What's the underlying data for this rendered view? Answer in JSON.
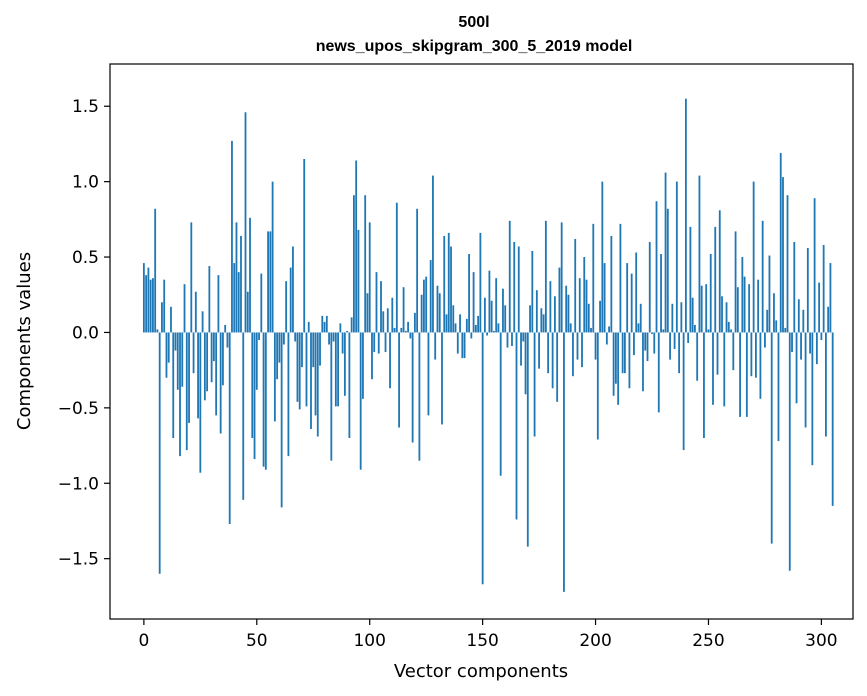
{
  "chart_data": {
    "type": "bar",
    "title_line1": "500l",
    "title_line2": "news_upos_skipgram_300_5_2019 model",
    "xlabel": "Vector components",
    "ylabel": "Components values",
    "xlim": [
      -15,
      314
    ],
    "ylim": [
      -1.9,
      1.78
    ],
    "xticks": [
      0,
      50,
      100,
      150,
      200,
      250,
      300
    ],
    "yticks": [
      -1.5,
      -1.0,
      -0.5,
      0.0,
      0.5,
      1.0,
      1.5
    ],
    "ytick_labels": [
      "−1.5",
      "−1.0",
      "−0.5",
      "0.0",
      "0.5",
      "1.0",
      "1.5"
    ],
    "bar_color": "#1f77b4",
    "values": [
      0.46,
      0.38,
      0.43,
      0.35,
      0.36,
      0.82,
      0.02,
      -1.6,
      0.2,
      0.35,
      -0.3,
      -0.2,
      0.17,
      -0.7,
      -0.12,
      -0.38,
      -0.82,
      -0.36,
      0.32,
      -0.78,
      -0.6,
      0.73,
      -0.27,
      0.27,
      -0.57,
      -0.93,
      0.14,
      -0.45,
      -0.39,
      0.44,
      -0.33,
      -0.19,
      -0.55,
      0.38,
      -0.67,
      -0.35,
      0.05,
      -0.1,
      -1.27,
      1.27,
      0.46,
      0.73,
      0.4,
      0.64,
      -1.11,
      1.46,
      0.27,
      0.76,
      -0.7,
      -0.84,
      -0.38,
      -0.05,
      0.39,
      -0.89,
      -0.91,
      0.67,
      0.67,
      1.0,
      -0.59,
      -0.31,
      -0.2,
      -1.16,
      -0.08,
      0.34,
      -0.82,
      0.43,
      0.57,
      -0.06,
      -0.46,
      -0.51,
      -0.23,
      1.15,
      -0.49,
      0.07,
      -0.64,
      -0.23,
      -0.55,
      -0.69,
      -0.22,
      0.11,
      0.07,
      0.11,
      -0.08,
      -0.85,
      -0.06,
      -0.49,
      -0.49,
      0.06,
      -0.14,
      -0.42,
      0.01,
      -0.7,
      0.1,
      0.91,
      1.14,
      0.68,
      -0.91,
      -0.44,
      0.91,
      0.26,
      0.73,
      -0.31,
      -0.13,
      0.4,
      -0.14,
      0.34,
      0.14,
      -0.13,
      0.16,
      -0.37,
      0.23,
      0.03,
      0.86,
      -0.63,
      0.03,
      0.3,
      0.01,
      0.07,
      -0.04,
      -0.73,
      0.13,
      0.82,
      -0.85,
      0.25,
      0.35,
      0.37,
      -0.55,
      0.48,
      1.04,
      -0.18,
      0.31,
      0.26,
      -0.61,
      0.64,
      0.12,
      0.66,
      0.57,
      0.18,
      0.06,
      -0.14,
      0.12,
      -0.17,
      -0.17,
      0.09,
      0.52,
      -0.04,
      0.4,
      0.05,
      0.11,
      0.66,
      -1.67,
      0.23,
      -0.02,
      0.41,
      0.21,
      0.01,
      0.36,
      0.06,
      -0.95,
      0.29,
      0.18,
      -0.1,
      0.74,
      -0.09,
      0.6,
      -1.24,
      0.57,
      -0.22,
      -0.06,
      -0.41,
      -1.42,
      0.18,
      0.54,
      -0.69,
      0.28,
      -0.24,
      0.16,
      0.12,
      0.74,
      -0.27,
      0.34,
      -0.37,
      0.24,
      -0.46,
      0.43,
      0.73,
      -1.72,
      0.31,
      0.25,
      0.06,
      -0.29,
      0.62,
      -0.18,
      0.36,
      -0.23,
      0.5,
      0.35,
      0.19,
      0.03,
      0.72,
      -0.18,
      -0.71,
      0.21,
      1.0,
      0.46,
      -0.08,
      0.04,
      0.64,
      -0.42,
      -0.34,
      -0.48,
      0.72,
      -0.27,
      -0.27,
      0.46,
      -0.37,
      0.39,
      -0.15,
      0.53,
      0.06,
      0.19,
      -0.39,
      -0.12,
      -0.19,
      0.6,
      -0.01,
      -0.14,
      0.87,
      -0.53,
      0.52,
      0.02,
      1.06,
      0.82,
      -0.18,
      0.19,
      -0.11,
      1.0,
      -0.27,
      0.2,
      -0.78,
      1.55,
      -0.07,
      0.7,
      0.23,
      0.05,
      -0.32,
      1.04,
      0.31,
      -0.7,
      0.32,
      0.02,
      0.52,
      -0.48,
      0.7,
      -0.28,
      0.81,
      0.24,
      -0.49,
      0.2,
      0.07,
      0.02,
      -0.25,
      0.67,
      0.3,
      -0.56,
      0.5,
      0.37,
      -0.56,
      0.32,
      -0.29,
      1.0,
      -0.3,
      0.35,
      -0.44,
      0.74,
      -0.1,
      0.15,
      0.51,
      -1.4,
      0.26,
      0.08,
      -0.72,
      1.19,
      1.03,
      0.03,
      0.91,
      -1.58,
      -0.13,
      0.6,
      -0.47,
      0.22,
      -0.18,
      0.15,
      -0.63,
      0.56,
      -0.14,
      -0.88,
      0.89,
      -0.21,
      0.33,
      -0.05,
      0.58,
      -0.69,
      0.17,
      0.46,
      -1.15
    ]
  }
}
